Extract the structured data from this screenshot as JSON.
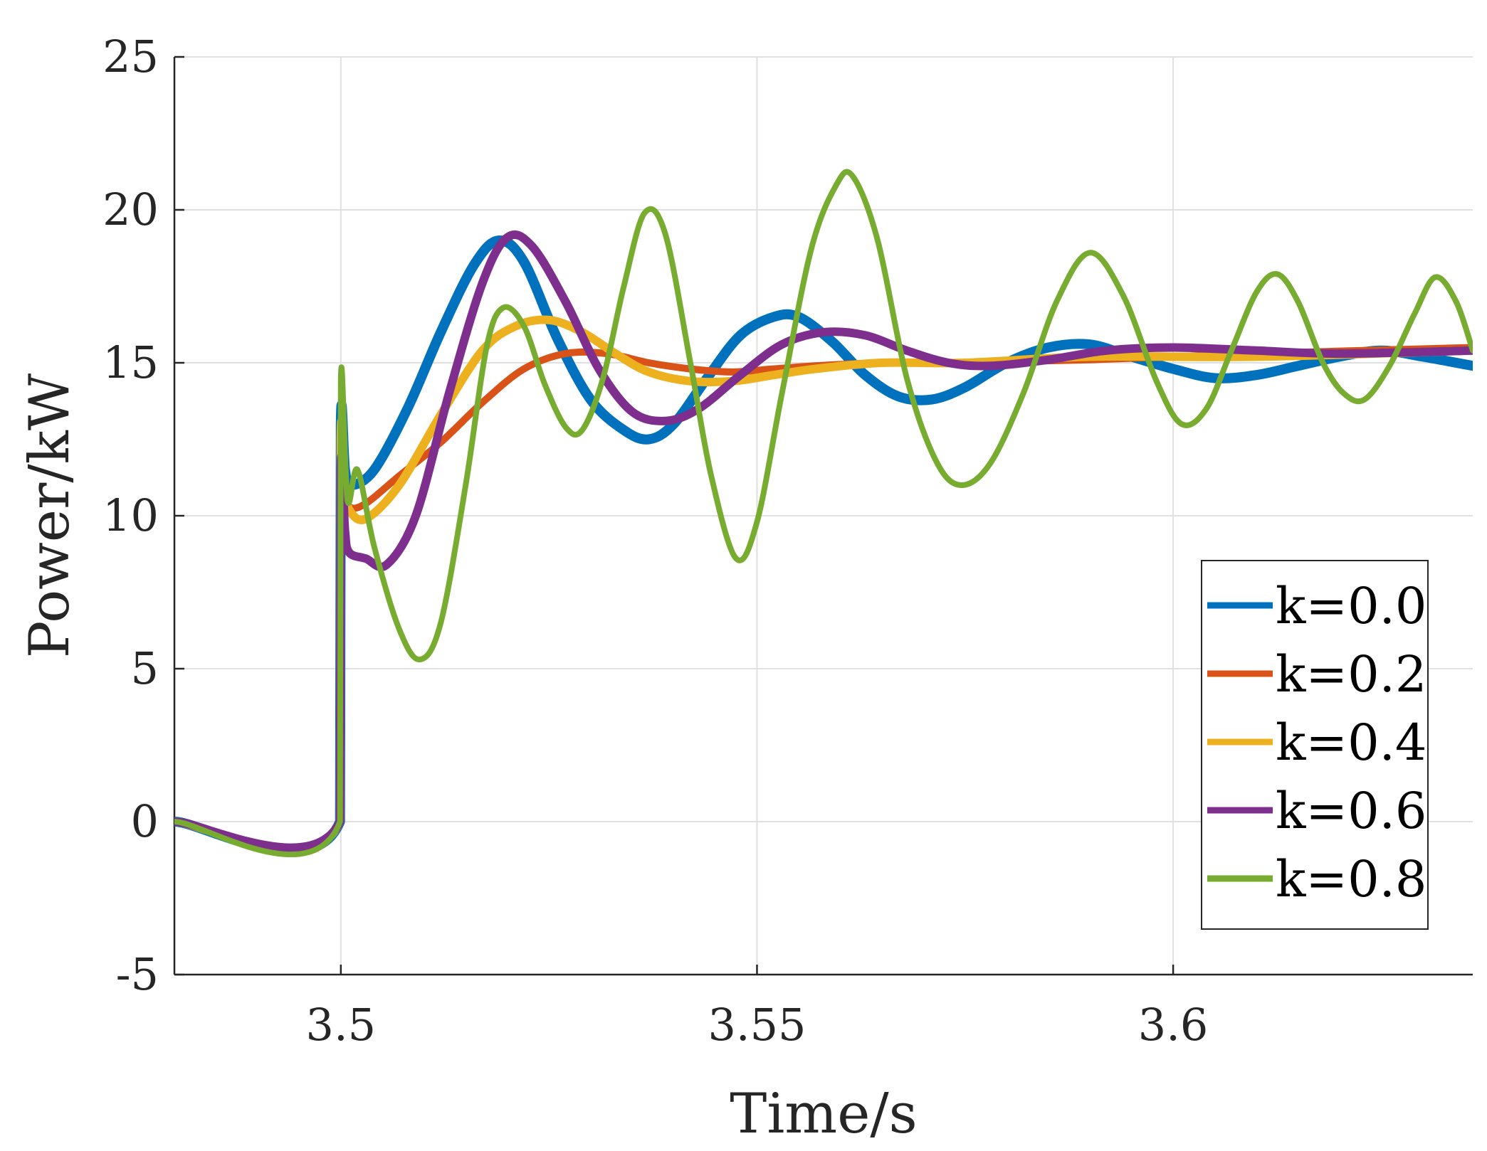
{
  "chart_data": {
    "type": "line",
    "title": "",
    "xlabel": "Time/s",
    "ylabel": "Power/kW",
    "xlim": [
      3.48,
      3.636
    ],
    "ylim": [
      -5,
      25
    ],
    "xticks": [
      3.5,
      3.55,
      3.6
    ],
    "xtick_labels": [
      "3.5",
      "3.55",
      "3.6"
    ],
    "yticks": [
      -5,
      0,
      5,
      10,
      15,
      20,
      25
    ],
    "ytick_labels": [
      "-5",
      "0",
      "5",
      "10",
      "15",
      "20",
      "25"
    ],
    "grid": true,
    "legend_position": "bottom-right",
    "series": [
      {
        "name": "k=0.0",
        "color": "#0072BD",
        "points": [
          [
            3.48,
            0
          ],
          [
            3.4999,
            0
          ],
          [
            3.5,
            13.0
          ],
          [
            3.5005,
            11.5
          ],
          [
            3.5012,
            11.0
          ],
          [
            3.504,
            11.5
          ],
          [
            3.508,
            13.5
          ],
          [
            3.512,
            16.0
          ],
          [
            3.516,
            18.2
          ],
          [
            3.519,
            19.0
          ],
          [
            3.522,
            18.3
          ],
          [
            3.526,
            15.8
          ],
          [
            3.53,
            13.8
          ],
          [
            3.534,
            12.8
          ],
          [
            3.537,
            12.5
          ],
          [
            3.54,
            13.0
          ],
          [
            3.544,
            14.5
          ],
          [
            3.548,
            15.9
          ],
          [
            3.552,
            16.5
          ],
          [
            3.555,
            16.5
          ],
          [
            3.559,
            15.7
          ],
          [
            3.563,
            14.6
          ],
          [
            3.567,
            13.9
          ],
          [
            3.571,
            13.8
          ],
          [
            3.575,
            14.2
          ],
          [
            3.58,
            15.0
          ],
          [
            3.585,
            15.5
          ],
          [
            3.59,
            15.6
          ],
          [
            3.595,
            15.2
          ],
          [
            3.6,
            14.8
          ],
          [
            3.605,
            14.5
          ],
          [
            3.61,
            14.6
          ],
          [
            3.615,
            14.9
          ],
          [
            3.62,
            15.2
          ],
          [
            3.625,
            15.4
          ],
          [
            3.63,
            15.2
          ],
          [
            3.636,
            14.9
          ]
        ]
      },
      {
        "name": "k=0.2",
        "color": "#D95319",
        "points": [
          [
            3.48,
            0
          ],
          [
            3.4999,
            0
          ],
          [
            3.5,
            12.5
          ],
          [
            3.5005,
            11.0
          ],
          [
            3.501,
            10.3
          ],
          [
            3.503,
            10.4
          ],
          [
            3.507,
            11.3
          ],
          [
            3.512,
            12.4
          ],
          [
            3.517,
            13.7
          ],
          [
            3.522,
            14.8
          ],
          [
            3.527,
            15.3
          ],
          [
            3.532,
            15.3
          ],
          [
            3.537,
            15.0
          ],
          [
            3.542,
            14.8
          ],
          [
            3.547,
            14.7
          ],
          [
            3.552,
            14.8
          ],
          [
            3.557,
            14.9
          ],
          [
            3.565,
            15.0
          ],
          [
            3.575,
            15.0
          ],
          [
            3.59,
            15.1
          ],
          [
            3.61,
            15.3
          ],
          [
            3.636,
            15.5
          ]
        ]
      },
      {
        "name": "k=0.4",
        "color": "#EDB120",
        "points": [
          [
            3.48,
            0
          ],
          [
            3.4999,
            0
          ],
          [
            3.5,
            12.5
          ],
          [
            3.5005,
            11.0
          ],
          [
            3.501,
            10.2
          ],
          [
            3.503,
            9.9
          ],
          [
            3.507,
            11.0
          ],
          [
            3.512,
            13.3
          ],
          [
            3.517,
            15.4
          ],
          [
            3.521,
            16.2
          ],
          [
            3.525,
            16.4
          ],
          [
            3.529,
            16.0
          ],
          [
            3.533,
            15.3
          ],
          [
            3.537,
            14.7
          ],
          [
            3.542,
            14.4
          ],
          [
            3.547,
            14.4
          ],
          [
            3.552,
            14.6
          ],
          [
            3.557,
            14.8
          ],
          [
            3.565,
            15.0
          ],
          [
            3.575,
            15.0
          ],
          [
            3.59,
            15.2
          ],
          [
            3.61,
            15.2
          ],
          [
            3.636,
            15.4
          ]
        ]
      },
      {
        "name": "k=0.6",
        "color": "#7E2F8E",
        "points": [
          [
            3.48,
            0
          ],
          [
            3.4999,
            0
          ],
          [
            3.5,
            11.5
          ],
          [
            3.5005,
            9.5
          ],
          [
            3.501,
            8.8
          ],
          [
            3.503,
            8.6
          ],
          [
            3.5055,
            8.4
          ],
          [
            3.509,
            10.0
          ],
          [
            3.513,
            14.0
          ],
          [
            3.517,
            17.6
          ],
          [
            3.52,
            19.1
          ],
          [
            3.523,
            18.8
          ],
          [
            3.527,
            17.0
          ],
          [
            3.531,
            14.8
          ],
          [
            3.535,
            13.4
          ],
          [
            3.539,
            13.1
          ],
          [
            3.543,
            13.5
          ],
          [
            3.548,
            14.6
          ],
          [
            3.553,
            15.6
          ],
          [
            3.558,
            16.0
          ],
          [
            3.563,
            15.9
          ],
          [
            3.568,
            15.4
          ],
          [
            3.573,
            15.0
          ],
          [
            3.578,
            14.9
          ],
          [
            3.585,
            15.1
          ],
          [
            3.592,
            15.4
          ],
          [
            3.6,
            15.5
          ],
          [
            3.61,
            15.4
          ],
          [
            3.62,
            15.3
          ],
          [
            3.636,
            15.4
          ]
        ]
      },
      {
        "name": "k=0.8",
        "color": "#77AC30",
        "points": [
          [
            3.48,
            0
          ],
          [
            3.4999,
            0
          ],
          [
            3.5,
            14.5
          ],
          [
            3.5008,
            10.5
          ],
          [
            3.502,
            11.5
          ],
          [
            3.504,
            9.0
          ],
          [
            3.507,
            6.3
          ],
          [
            3.5095,
            5.3
          ],
          [
            3.512,
            6.5
          ],
          [
            3.515,
            11.0
          ],
          [
            3.5175,
            15.5
          ],
          [
            3.5195,
            16.8
          ],
          [
            3.522,
            16.2
          ],
          [
            3.5245,
            14.3
          ],
          [
            3.527,
            12.9
          ],
          [
            3.529,
            12.8
          ],
          [
            3.5315,
            14.5
          ],
          [
            3.534,
            17.5
          ],
          [
            3.5365,
            19.9
          ],
          [
            3.539,
            19.2
          ],
          [
            3.542,
            15.0
          ],
          [
            3.5445,
            11.3
          ],
          [
            3.5475,
            8.6
          ],
          [
            3.55,
            9.8
          ],
          [
            3.553,
            14.0
          ],
          [
            3.5565,
            18.7
          ],
          [
            3.5595,
            20.8
          ],
          [
            3.5615,
            21.1
          ],
          [
            3.5645,
            19.0
          ],
          [
            3.568,
            14.5
          ],
          [
            3.5715,
            11.8
          ],
          [
            3.5745,
            11.0
          ],
          [
            3.578,
            11.7
          ],
          [
            3.582,
            14.0
          ],
          [
            3.586,
            17.0
          ],
          [
            3.59,
            18.6
          ],
          [
            3.594,
            17.2
          ],
          [
            3.598,
            14.4
          ],
          [
            3.601,
            13.0
          ],
          [
            3.604,
            13.5
          ],
          [
            3.607,
            15.4
          ],
          [
            3.61,
            17.3
          ],
          [
            3.6125,
            17.9
          ],
          [
            3.615,
            17.0
          ],
          [
            3.618,
            15.0
          ],
          [
            3.6205,
            14.0
          ],
          [
            3.623,
            13.8
          ],
          [
            3.626,
            14.9
          ],
          [
            3.629,
            16.6
          ],
          [
            3.6315,
            17.8
          ],
          [
            3.634,
            17.0
          ],
          [
            3.636,
            15.4
          ]
        ]
      }
    ]
  }
}
